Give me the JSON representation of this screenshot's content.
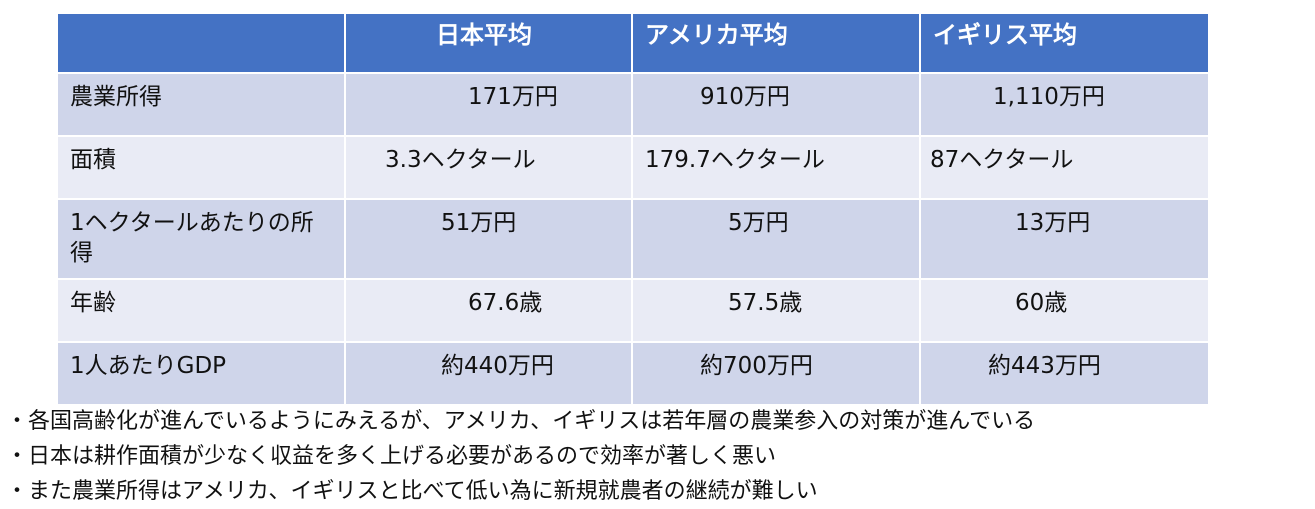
{
  "table": {
    "headers": [
      "",
      "日本平均",
      "アメリカ平均",
      "イギリス平均"
    ],
    "rows": [
      {
        "label": "農業所得",
        "values": [
          "171万円",
          "910万円",
          "1,110万円"
        ]
      },
      {
        "label": "面積",
        "values": [
          "3.3ヘクタール",
          "179.7ヘクタール",
          "87ヘクタール"
        ]
      },
      {
        "label": "1ヘクタールあたりの所得",
        "values": [
          "51万円",
          "5万円",
          "13万円"
        ]
      },
      {
        "label": "年齢",
        "values": [
          "67.6歳",
          "57.5歳",
          "60歳"
        ]
      },
      {
        "label": "1人あたりGDP",
        "values": [
          "約440万円",
          "約700万円",
          "約443万円"
        ]
      }
    ]
  },
  "notes": [
    "・各国高齢化が進んでいるようにみえるが、アメリカ、イギリスは若年層の農業参入の対策が進んでいる",
    "・日本は耕作面積が少なく収益を多く上げる必要があるので効率が著しく悪い",
    "・また農業所得はアメリカ、イギリスと比べて低い為に新規就農者の継続が難しい"
  ],
  "colors": {
    "header": "#4472c4",
    "row_dark": "#cfd5ea",
    "row_light": "#e9ebf5"
  }
}
